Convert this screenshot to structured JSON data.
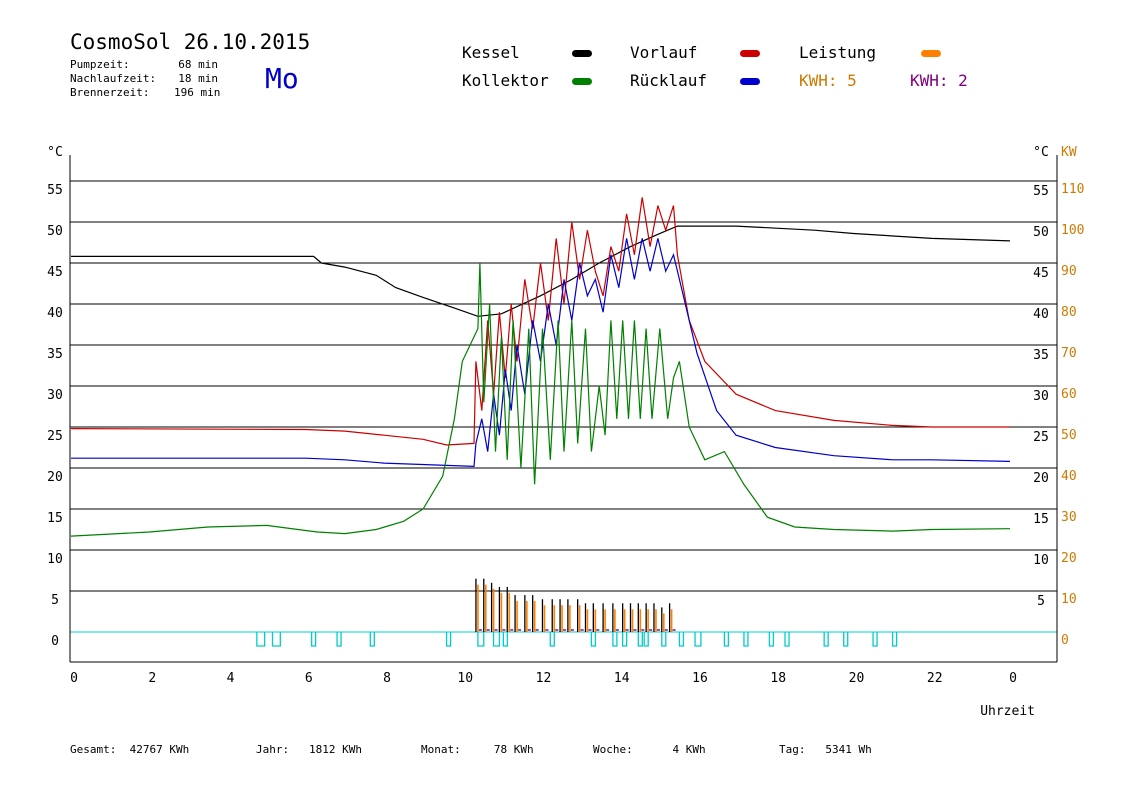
{
  "header": {
    "title": "CosmoSol 26.10.2015",
    "weekday": "Mo",
    "info": [
      {
        "label": "Pumpzeit:",
        "value": "68 min"
      },
      {
        "label": "Nachlaufzeit:",
        "value": "18 min"
      },
      {
        "label": "Brennerzeit:",
        "value": "196 min"
      }
    ]
  },
  "legend": {
    "kessel": "Kessel",
    "kollektor": "Kollektor",
    "vorlauf": "Vorlauf",
    "ruecklauf": "Rücklauf",
    "leistung": "Leistung",
    "kwh_orange": "KWH: 5",
    "kwh_purple": "KWH: 2"
  },
  "footer": [
    {
      "label": "Gesamt:",
      "value": "42767 KWh"
    },
    {
      "label": "Jahr:",
      "value": "1812 KWh"
    },
    {
      "label": "Monat:",
      "value": "78 KWh"
    },
    {
      "label": "Woche:",
      "value": "4 KWh"
    },
    {
      "label": "Tag:",
      "value": "5341 Wh"
    }
  ],
  "colors": {
    "kessel": "#000000",
    "kollektor": "#008000",
    "vorlauf": "#cc0000",
    "ruecklauf": "#0000cc",
    "leistung": "#ff8000",
    "purple": "#800080",
    "pump": "#00cccc",
    "axis_orange": "#cc7a00"
  },
  "chart_data": {
    "type": "line",
    "xlabel": "Uhrzeit",
    "x_ticks": [
      "0",
      "2",
      "4",
      "6",
      "8",
      "10",
      "12",
      "14",
      "16",
      "18",
      "20",
      "22",
      "0"
    ],
    "y_left_unit": "°C",
    "y_right_unit": "°C",
    "y_right2_unit": "KW",
    "y_left_ticks": [
      "0",
      "5",
      "10",
      "15",
      "20",
      "25",
      "30",
      "35",
      "40",
      "45",
      "50",
      "55"
    ],
    "y_right_ticks": [
      "5",
      "10",
      "15",
      "20",
      "25",
      "30",
      "35",
      "40",
      "45",
      "50",
      "55"
    ],
    "y_right2_ticks": [
      "0",
      "10",
      "20",
      "30",
      "40",
      "50",
      "60",
      "70",
      "80",
      "90",
      "100",
      "110"
    ],
    "xlim": [
      0,
      24
    ],
    "ylim": [
      -3.7,
      58
    ],
    "grid": true,
    "series": [
      {
        "name": "Kessel",
        "key": "kessel",
        "points": [
          [
            0,
            45.8
          ],
          [
            6.2,
            45.8
          ],
          [
            6.4,
            45
          ],
          [
            7,
            44.5
          ],
          [
            7.8,
            43.5
          ],
          [
            8.3,
            42
          ],
          [
            9,
            40.8
          ],
          [
            9.8,
            39.5
          ],
          [
            10.4,
            38.5
          ],
          [
            11,
            38.8
          ],
          [
            12,
            41
          ],
          [
            12.8,
            43
          ],
          [
            13.5,
            45
          ],
          [
            14.3,
            47
          ],
          [
            15,
            48.5
          ],
          [
            15.5,
            49.5
          ],
          [
            17,
            49.5
          ],
          [
            19,
            49
          ],
          [
            20,
            48.6
          ],
          [
            22,
            48
          ],
          [
            24,
            47.7
          ]
        ]
      },
      {
        "name": "Vorlauf",
        "key": "vorlauf",
        "points": [
          [
            0,
            24.8
          ],
          [
            6,
            24.7
          ],
          [
            7,
            24.5
          ],
          [
            8,
            24
          ],
          [
            9,
            23.5
          ],
          [
            9.6,
            22.8
          ],
          [
            10.3,
            23
          ],
          [
            10.35,
            33
          ],
          [
            10.5,
            27
          ],
          [
            10.65,
            38
          ],
          [
            10.8,
            29
          ],
          [
            10.95,
            39
          ],
          [
            11.1,
            31
          ],
          [
            11.25,
            40
          ],
          [
            11.4,
            33
          ],
          [
            11.6,
            43
          ],
          [
            11.8,
            37
          ],
          [
            12,
            45
          ],
          [
            12.2,
            38
          ],
          [
            12.4,
            48
          ],
          [
            12.6,
            40
          ],
          [
            12.8,
            50
          ],
          [
            13,
            43
          ],
          [
            13.2,
            49
          ],
          [
            13.4,
            44
          ],
          [
            13.6,
            41
          ],
          [
            13.8,
            47
          ],
          [
            14,
            44
          ],
          [
            14.2,
            51
          ],
          [
            14.4,
            46
          ],
          [
            14.6,
            53
          ],
          [
            14.8,
            47
          ],
          [
            15,
            52
          ],
          [
            15.2,
            49
          ],
          [
            15.4,
            52
          ],
          [
            15.5,
            46
          ],
          [
            15.8,
            38
          ],
          [
            16.2,
            33
          ],
          [
            17,
            29
          ],
          [
            18,
            27
          ],
          [
            19.5,
            25.8
          ],
          [
            21,
            25.2
          ],
          [
            22,
            25
          ],
          [
            24,
            25
          ]
        ]
      },
      {
        "name": "Rücklauf",
        "key": "ruecklauf",
        "points": [
          [
            0,
            21.2
          ],
          [
            6,
            21.2
          ],
          [
            7,
            21
          ],
          [
            8,
            20.6
          ],
          [
            10.3,
            20.2
          ],
          [
            10.35,
            23
          ],
          [
            10.5,
            26
          ],
          [
            10.65,
            22
          ],
          [
            10.8,
            29
          ],
          [
            10.95,
            24
          ],
          [
            11.1,
            32
          ],
          [
            11.25,
            27
          ],
          [
            11.4,
            35
          ],
          [
            11.6,
            29
          ],
          [
            11.8,
            38
          ],
          [
            12,
            33
          ],
          [
            12.2,
            40
          ],
          [
            12.4,
            35
          ],
          [
            12.6,
            43
          ],
          [
            12.8,
            38
          ],
          [
            13,
            45
          ],
          [
            13.2,
            41
          ],
          [
            13.4,
            43
          ],
          [
            13.6,
            39
          ],
          [
            13.8,
            46
          ],
          [
            14,
            42
          ],
          [
            14.2,
            48
          ],
          [
            14.4,
            43
          ],
          [
            14.6,
            48
          ],
          [
            14.8,
            44
          ],
          [
            15,
            48
          ],
          [
            15.2,
            44
          ],
          [
            15.4,
            46
          ],
          [
            15.6,
            42
          ],
          [
            16,
            34
          ],
          [
            16.5,
            27
          ],
          [
            17,
            24
          ],
          [
            18,
            22.5
          ],
          [
            19.5,
            21.5
          ],
          [
            21,
            21
          ],
          [
            22,
            21
          ],
          [
            24,
            20.8
          ]
        ]
      },
      {
        "name": "Kollektor",
        "key": "kollektor",
        "points": [
          [
            0,
            11.7
          ],
          [
            2,
            12.2
          ],
          [
            3.5,
            12.8
          ],
          [
            5,
            13
          ],
          [
            5.8,
            12.5
          ],
          [
            6.3,
            12.2
          ],
          [
            7,
            12
          ],
          [
            7.8,
            12.5
          ],
          [
            8.5,
            13.5
          ],
          [
            9,
            15
          ],
          [
            9.5,
            19
          ],
          [
            9.8,
            26
          ],
          [
            10,
            33
          ],
          [
            10.2,
            35
          ],
          [
            10.4,
            37
          ],
          [
            10.45,
            45
          ],
          [
            10.55,
            28
          ],
          [
            10.7,
            40
          ],
          [
            10.85,
            22
          ],
          [
            11,
            36
          ],
          [
            11.15,
            21
          ],
          [
            11.3,
            38
          ],
          [
            11.5,
            20
          ],
          [
            11.7,
            37
          ],
          [
            11.85,
            18
          ],
          [
            12.05,
            37
          ],
          [
            12.25,
            21
          ],
          [
            12.45,
            38
          ],
          [
            12.6,
            22
          ],
          [
            12.8,
            38
          ],
          [
            12.95,
            23
          ],
          [
            13.15,
            37
          ],
          [
            13.3,
            22
          ],
          [
            13.5,
            30
          ],
          [
            13.65,
            24
          ],
          [
            13.8,
            38
          ],
          [
            13.95,
            26
          ],
          [
            14.1,
            38
          ],
          [
            14.25,
            26
          ],
          [
            14.4,
            38
          ],
          [
            14.55,
            26
          ],
          [
            14.7,
            37
          ],
          [
            14.85,
            26
          ],
          [
            15.05,
            37
          ],
          [
            15.25,
            26
          ],
          [
            15.4,
            31
          ],
          [
            15.55,
            33
          ],
          [
            15.8,
            25
          ],
          [
            16.2,
            21
          ],
          [
            16.7,
            22
          ],
          [
            17.2,
            18
          ],
          [
            17.8,
            14
          ],
          [
            18.5,
            12.8
          ],
          [
            19.5,
            12.5
          ],
          [
            21,
            12.3
          ],
          [
            22,
            12.5
          ],
          [
            24,
            12.6
          ]
        ]
      }
    ],
    "leistung_bars": [
      {
        "x": 10.35,
        "kw": 13
      },
      {
        "x": 10.55,
        "kw": 13
      },
      {
        "x": 10.75,
        "kw": 12
      },
      {
        "x": 10.95,
        "kw": 11
      },
      {
        "x": 11.15,
        "kw": 11
      },
      {
        "x": 11.35,
        "kw": 9
      },
      {
        "x": 11.6,
        "kw": 9
      },
      {
        "x": 11.8,
        "kw": 9
      },
      {
        "x": 12.05,
        "kw": 8
      },
      {
        "x": 12.3,
        "kw": 8
      },
      {
        "x": 12.5,
        "kw": 8
      },
      {
        "x": 12.7,
        "kw": 8
      },
      {
        "x": 12.95,
        "kw": 8
      },
      {
        "x": 13.15,
        "kw": 7
      },
      {
        "x": 13.35,
        "kw": 7
      },
      {
        "x": 13.6,
        "kw": 7
      },
      {
        "x": 13.85,
        "kw": 7
      },
      {
        "x": 14.1,
        "kw": 7
      },
      {
        "x": 14.3,
        "kw": 7
      },
      {
        "x": 14.5,
        "kw": 7
      },
      {
        "x": 14.7,
        "kw": 7
      },
      {
        "x": 14.9,
        "kw": 7
      },
      {
        "x": 15.1,
        "kw": 6
      },
      {
        "x": 15.3,
        "kw": 7
      }
    ],
    "pump_pulses": [
      [
        4.75,
        4.95
      ],
      [
        5.15,
        5.35
      ],
      [
        6.15,
        6.2
      ],
      [
        6.8,
        6.85
      ],
      [
        7.65,
        7.7
      ],
      [
        9.6,
        9.65
      ],
      [
        10.4,
        10.55
      ],
      [
        10.8,
        10.95
      ],
      [
        11.05,
        11.15
      ],
      [
        12.25,
        12.35
      ],
      [
        13.3,
        13.35
      ],
      [
        13.85,
        13.95
      ],
      [
        14.1,
        14.2
      ],
      [
        14.5,
        14.55
      ],
      [
        14.65,
        14.75
      ],
      [
        15.1,
        15.2
      ],
      [
        15.55,
        15.6
      ],
      [
        15.95,
        16.1
      ],
      [
        16.7,
        16.8
      ],
      [
        17.2,
        17.3
      ],
      [
        17.85,
        17.95
      ],
      [
        18.25,
        18.35
      ],
      [
        19.25,
        19.35
      ],
      [
        19.75,
        19.85
      ],
      [
        20.5,
        20.6
      ],
      [
        21.0,
        21.1
      ]
    ]
  }
}
